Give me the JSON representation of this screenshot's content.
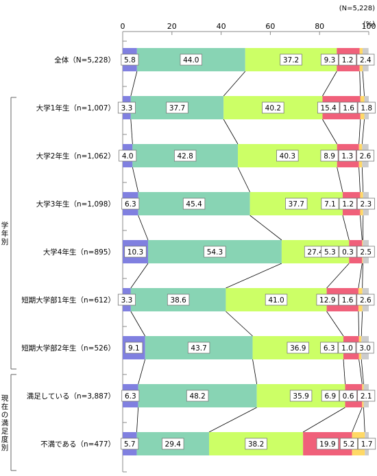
{
  "chart_data": {
    "type": "bar",
    "stacked": true,
    "orientation": "horizontal",
    "sample_note": "(N=5,228)",
    "unit": "(%)",
    "xlim": [
      0,
      100
    ],
    "xticks": [
      "0",
      "20",
      "40",
      "60",
      "80",
      "100"
    ],
    "group_labels": [
      "学年別",
      "現在の満足度別"
    ],
    "categories": [
      "全体（N=5,228）",
      "大学1年生（n=1,007）",
      "大学2年生（n=1,062）",
      "大学3年生（n=1,098）",
      "大学4年生（n=895）",
      "短期大学部1年生（n=612）",
      "短期大学部2年生（n=526）",
      "満足している（n=3,887）",
      "不満である（n=477）"
    ],
    "series": [
      {
        "color": "#8080e0",
        "values": [
          5.8,
          3.3,
          4.0,
          6.3,
          10.3,
          3.3,
          9.1,
          6.3,
          5.7
        ]
      },
      {
        "color": "#88d4b4",
        "values": [
          44.0,
          37.7,
          42.8,
          45.4,
          54.3,
          38.6,
          43.7,
          48.2,
          29.4
        ]
      },
      {
        "color": "#ccff66",
        "values": [
          37.2,
          40.2,
          40.3,
          37.7,
          27.4,
          41.0,
          36.9,
          35.9,
          38.2
        ]
      },
      {
        "color": "#f0607a",
        "values": [
          9.3,
          15.4,
          8.9,
          7.1,
          5.3,
          12.9,
          6.3,
          6.9,
          19.9
        ]
      },
      {
        "color": "#ffd966",
        "values": [
          1.2,
          1.6,
          1.3,
          1.2,
          0.3,
          1.6,
          1.0,
          0.6,
          5.2
        ]
      },
      {
        "color": "#cccccc",
        "values": [
          2.4,
          1.8,
          2.6,
          2.3,
          2.5,
          2.6,
          3.0,
          2.1,
          1.7
        ]
      }
    ],
    "data_labels": [
      [
        "5.8",
        "44.0",
        "37.2",
        "9.3",
        "1.2",
        "2.4"
      ],
      [
        "3.3",
        "37.7",
        "40.2",
        "15.4",
        "1.6",
        "1.8"
      ],
      [
        "4.0",
        "42.8",
        "40.3",
        "8.9",
        "1.3",
        "2.6"
      ],
      [
        "6.3",
        "45.4",
        "37.7",
        "7.1",
        "1.2",
        "2.3"
      ],
      [
        "10.3",
        "54.3",
        "27.4",
        "5.3",
        "0.3",
        "2.5"
      ],
      [
        "3.3",
        "38.6",
        "41.0",
        "12.9",
        "1.6",
        "2.6"
      ],
      [
        "9.1",
        "43.7",
        "36.9",
        "6.3",
        "1.0",
        "3.0"
      ],
      [
        "6.3",
        "48.2",
        "35.9",
        "6.9",
        "0.6",
        "2.1"
      ],
      [
        "5.7",
        "29.4",
        "38.2",
        "19.9",
        "5.2",
        "1.7"
      ]
    ]
  }
}
